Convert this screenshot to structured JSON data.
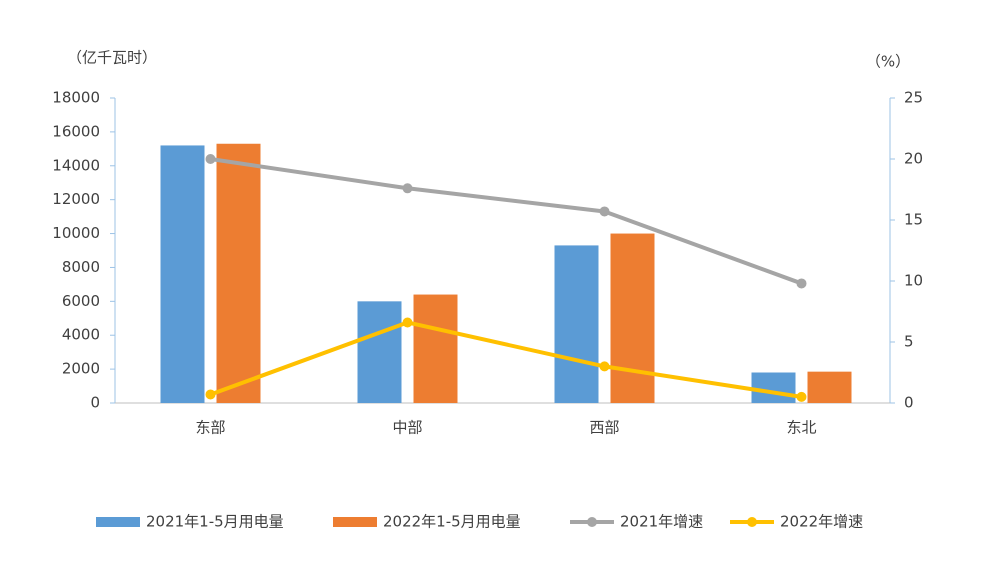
{
  "chart_data": {
    "type": "bar_line",
    "y_label": "（亿千瓦时）",
    "y2_label": "（%）",
    "categories": [
      "东部",
      "中部",
      "西部",
      "东北"
    ],
    "series": [
      {
        "name": "2021年1-5月用电量",
        "type": "bar",
        "color": "#5b9bd5",
        "values": [
          15200,
          6000,
          9300,
          1800
        ]
      },
      {
        "name": "2022年1-5月用电量",
        "type": "bar",
        "color": "#ed7d31",
        "values": [
          15300,
          6400,
          10000,
          1850
        ]
      },
      {
        "name": "2021年增速",
        "type": "line",
        "axis": "y2",
        "color": "#a5a5a5",
        "values": [
          20,
          17.6,
          15.7,
          9.8
        ]
      },
      {
        "name": "2022年增速",
        "type": "line",
        "axis": "y2",
        "color": "#ffc000",
        "values": [
          0.7,
          6.6,
          3.0,
          0.5
        ]
      }
    ],
    "ylim": [
      0,
      18000
    ],
    "yticks": [
      0,
      2000,
      4000,
      6000,
      8000,
      10000,
      12000,
      14000,
      16000,
      18000
    ],
    "y2lim": [
      0,
      25
    ],
    "y2ticks": [
      0,
      5,
      10,
      15,
      20,
      25
    ],
    "legend": "bottom"
  }
}
